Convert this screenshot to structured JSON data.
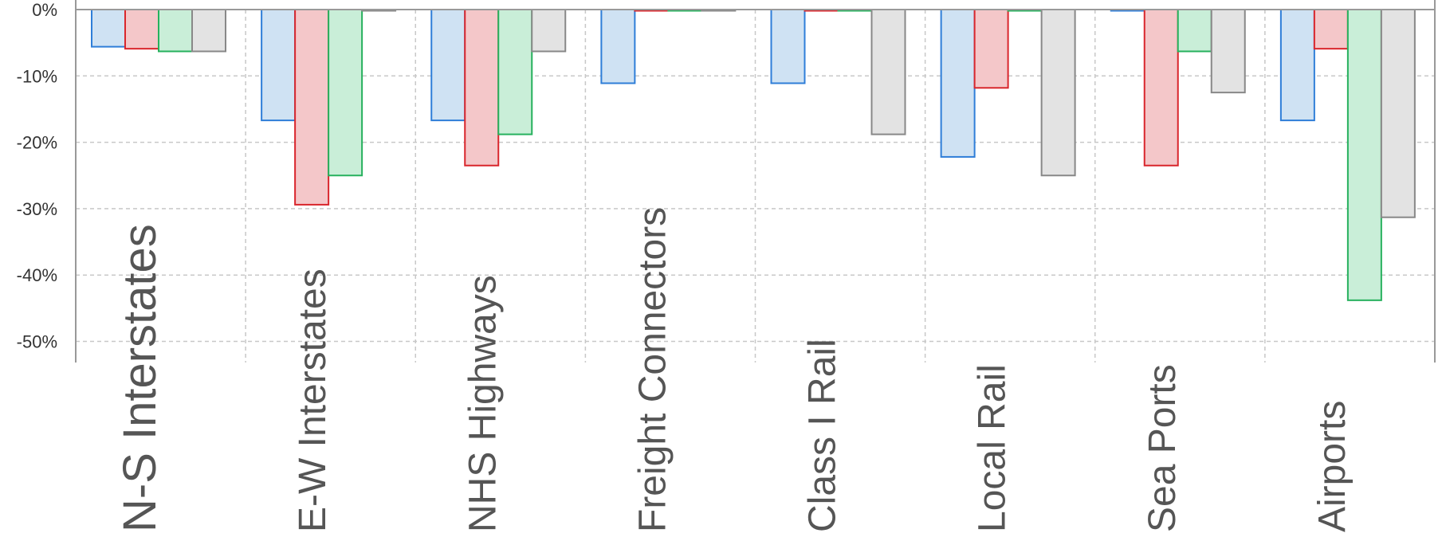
{
  "chart_data": {
    "type": "bar",
    "categories": [
      "N-S Interstates",
      "E-W Interstates",
      "NHS Highways",
      "Freight Connectors",
      "Class I Rail",
      "Local Rail",
      "Sea Ports",
      "Airports"
    ],
    "series": [
      {
        "color": "#2f7ed8",
        "fill": "#cfe2f3",
        "values": [
          -5.6,
          -16.7,
          -16.7,
          -11.1,
          -11.1,
          -22.2,
          0,
          -16.7
        ]
      },
      {
        "color": "#d9262c",
        "fill": "#f4c7c9",
        "values": [
          -5.9,
          -29.4,
          -23.5,
          0,
          0,
          -11.8,
          -23.5,
          -5.9
        ]
      },
      {
        "color": "#27b15e",
        "fill": "#c9eed8",
        "values": [
          -6.3,
          -25.0,
          -18.8,
          0,
          0,
          0,
          -6.3,
          -43.8
        ]
      },
      {
        "color": "#888888",
        "fill": "#e3e3e3",
        "values": [
          -6.3,
          0,
          -6.3,
          0,
          -18.8,
          -25.0,
          -12.5,
          -31.3
        ]
      }
    ],
    "yticks": [
      "0%",
      "-10%",
      "-20%",
      "-30%",
      "-40%",
      "-50%"
    ],
    "ytick_values": [
      0,
      -10,
      -20,
      -30,
      -40,
      -50
    ],
    "ylim": [
      -52.5,
      0
    ],
    "grid": true,
    "title": "",
    "xlabel": "",
    "ylabel": ""
  }
}
